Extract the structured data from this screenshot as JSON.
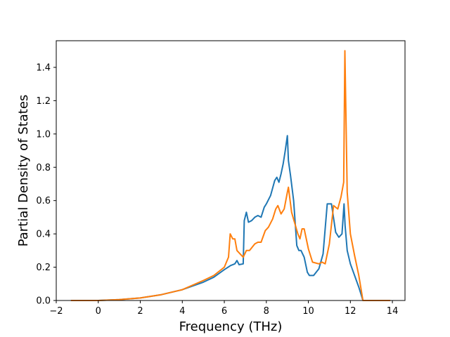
{
  "chart_data": {
    "type": "line",
    "title": "",
    "xlabel": "Frequency (THz)",
    "ylabel": "Partial Density of States",
    "xlim": [
      -2,
      14.6
    ],
    "ylim": [
      0,
      1.56
    ],
    "xticks": [
      -2,
      0,
      2,
      4,
      6,
      8,
      10,
      12,
      14
    ],
    "xtick_labels": [
      "−2",
      "0",
      "2",
      "4",
      "6",
      "8",
      "10",
      "12",
      "14"
    ],
    "yticks": [
      0,
      0.2,
      0.4,
      0.6,
      0.8,
      1.0,
      1.2,
      1.4
    ],
    "ytick_labels": [
      "0.0",
      "0.2",
      "0.4",
      "0.6",
      "0.8",
      "1.0",
      "1.2",
      "1.4"
    ],
    "grid": false,
    "legend": "none",
    "series": [
      {
        "color": "#1f77b4",
        "x": [
          -1.3,
          0,
          1,
          2,
          3,
          4,
          5,
          5.5,
          6,
          6.3,
          6.5,
          6.6,
          6.7,
          6.9,
          6.95,
          7.05,
          7.15,
          7.3,
          7.45,
          7.6,
          7.75,
          7.9,
          8.0,
          8.2,
          8.4,
          8.5,
          8.6,
          8.7,
          8.8,
          8.9,
          9.0,
          9.05,
          9.15,
          9.3,
          9.45,
          9.55,
          9.65,
          9.8,
          9.95,
          10.05,
          10.25,
          10.5,
          10.7,
          10.9,
          11.1,
          11.3,
          11.45,
          11.6,
          11.7,
          11.75,
          11.85,
          12.0,
          12.2,
          12.4,
          12.6,
          13.0,
          13.9
        ],
        "y": [
          0.0,
          0.0,
          0.005,
          0.015,
          0.035,
          0.065,
          0.11,
          0.14,
          0.185,
          0.21,
          0.22,
          0.24,
          0.215,
          0.22,
          0.48,
          0.53,
          0.47,
          0.48,
          0.5,
          0.51,
          0.5,
          0.56,
          0.58,
          0.63,
          0.72,
          0.74,
          0.71,
          0.76,
          0.82,
          0.9,
          0.99,
          0.84,
          0.75,
          0.6,
          0.33,
          0.3,
          0.3,
          0.26,
          0.17,
          0.15,
          0.15,
          0.19,
          0.28,
          0.58,
          0.58,
          0.41,
          0.38,
          0.4,
          0.58,
          0.45,
          0.3,
          0.22,
          0.15,
          0.08,
          0.0,
          0.0,
          0.0
        ]
      },
      {
        "color": "#ff7f0e",
        "x": [
          -1.3,
          0,
          1,
          2,
          3,
          4,
          5,
          5.5,
          6,
          6.2,
          6.28,
          6.4,
          6.5,
          6.6,
          6.75,
          6.9,
          7.05,
          7.2,
          7.45,
          7.6,
          7.75,
          7.95,
          8.1,
          8.3,
          8.45,
          8.55,
          8.7,
          8.85,
          9.0,
          9.05,
          9.2,
          9.5,
          9.6,
          9.7,
          9.8,
          10.0,
          10.2,
          10.5,
          10.65,
          10.8,
          11.0,
          11.2,
          11.4,
          11.55,
          11.68,
          11.74,
          11.85,
          12.0,
          12.2,
          12.4,
          12.6,
          13.0,
          13.9
        ],
        "y": [
          0.0,
          0.0,
          0.005,
          0.015,
          0.035,
          0.065,
          0.12,
          0.15,
          0.2,
          0.26,
          0.4,
          0.37,
          0.37,
          0.3,
          0.28,
          0.26,
          0.3,
          0.3,
          0.34,
          0.35,
          0.35,
          0.42,
          0.44,
          0.49,
          0.55,
          0.57,
          0.52,
          0.55,
          0.65,
          0.68,
          0.53,
          0.4,
          0.37,
          0.43,
          0.43,
          0.31,
          0.23,
          0.22,
          0.23,
          0.22,
          0.34,
          0.57,
          0.55,
          0.62,
          0.71,
          1.5,
          0.65,
          0.4,
          0.27,
          0.15,
          0.0,
          0.0,
          0.0
        ]
      }
    ]
  }
}
